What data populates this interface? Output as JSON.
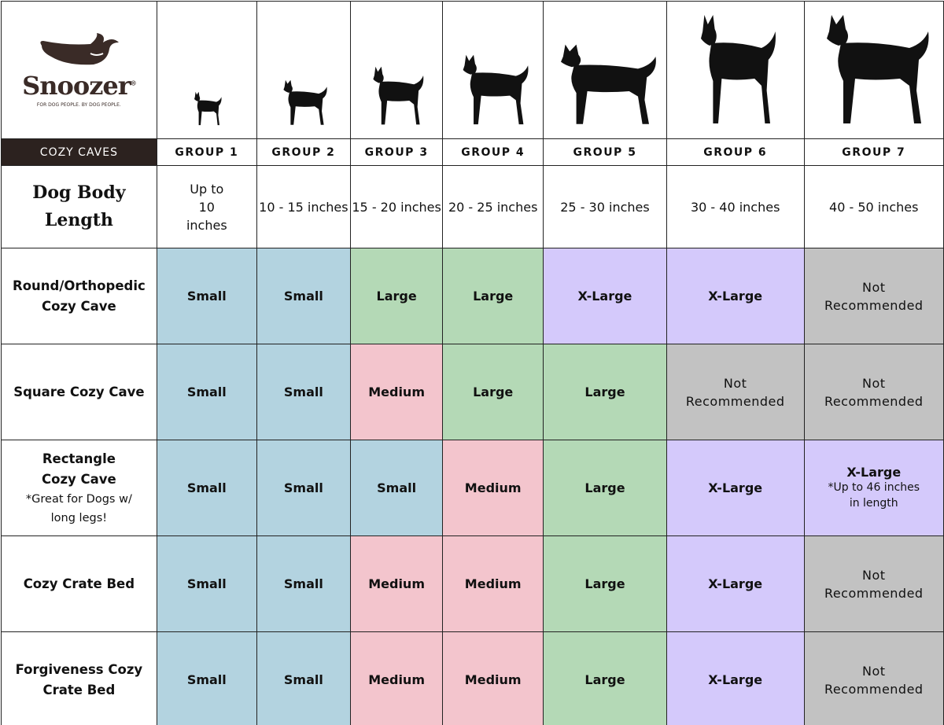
{
  "brand": {
    "name": "Snoozer",
    "registered": "®",
    "tagline": "FOR DOG PEOPLE. BY DOG PEOPLE."
  },
  "section_label": "COZY CAVES",
  "colors": {
    "Small": "#b3d3e0",
    "Medium": "#f3c5cd",
    "Large": "#b4d9b6",
    "X-Large": "#d4c9fb",
    "Not Recommended": "#c2c2c2",
    "header_dark": "#2c221f"
  },
  "groups": [
    {
      "label": "GROUP 1",
      "length": "Up to 10 inches",
      "icon": "chihuahua-silhouette-icon"
    },
    {
      "label": "GROUP 2",
      "length": "10 - 15 inches",
      "icon": "pomeranian-silhouette-icon"
    },
    {
      "label": "GROUP 3",
      "length": "15 - 20 inches",
      "icon": "boston-terrier-silhouette-icon"
    },
    {
      "label": "GROUP 4",
      "length": "20 - 25 inches",
      "icon": "husky-silhouette-icon"
    },
    {
      "label": "GROUP 5",
      "length": "25 - 30 inches",
      "icon": "golden-retriever-silhouette-icon"
    },
    {
      "label": "GROUP 6",
      "length": "30 - 40 inches",
      "icon": "doberman-silhouette-icon"
    },
    {
      "label": "GROUP 7",
      "length": "40 - 50 inches",
      "icon": "great-dane-silhouette-icon"
    }
  ],
  "length_label": "Dog Body Length",
  "products": [
    {
      "name": "Round/Orthopedic Cozy Cave",
      "note": "",
      "sizes": [
        "Small",
        "Small",
        "Large",
        "Large",
        "X-Large",
        "X-Large",
        "Not Recommended"
      ]
    },
    {
      "name": "Square Cozy Cave",
      "note": "",
      "sizes": [
        "Small",
        "Small",
        "Medium",
        "Large",
        "Large",
        "Not Recommended",
        "Not Recommended"
      ]
    },
    {
      "name": "Rectangle Cozy Cave",
      "note": "*Great for Dogs w/ long legs!",
      "sizes": [
        "Small",
        "Small",
        "Small",
        "Medium",
        "Large",
        "X-Large",
        "X-Large"
      ],
      "cell_notes": {
        "6": "*Up to 46 inches in length"
      }
    },
    {
      "name": "Cozy Crate Bed",
      "note": "",
      "sizes": [
        "Small",
        "Small",
        "Medium",
        "Medium",
        "Large",
        "X-Large",
        "Not Recommended"
      ]
    },
    {
      "name": "Forgiveness Cozy Crate Bed",
      "note": "",
      "sizes": [
        "Small",
        "Small",
        "Medium",
        "Medium",
        "Large",
        "X-Large",
        "Not Recommended"
      ]
    }
  ]
}
